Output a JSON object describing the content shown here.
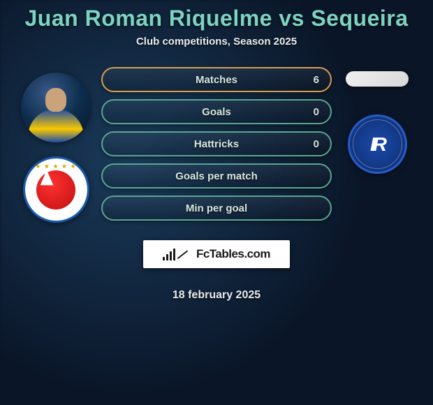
{
  "title": "Juan Roman Riquelme vs Sequeira",
  "subtitle": "Club competitions, Season 2025",
  "date": "18 february 2025",
  "brand": "FcTables.com",
  "colors": {
    "accent_teal": "#7dd3c0",
    "pill_border_green": "#5aa890",
    "pill_border_gold": "#d4a050",
    "text_light": "#e8ecef",
    "bg_dark": "#0a1628"
  },
  "left": {
    "player_name": "Juan Roman Riquelme",
    "club_name": "Argentinos Juniors"
  },
  "right": {
    "player_name": "Sequeira",
    "club_name": "Independiente Rivadavia"
  },
  "stats": [
    {
      "label": "Matches",
      "value": "6",
      "highlight": true
    },
    {
      "label": "Goals",
      "value": "0",
      "highlight": false
    },
    {
      "label": "Hattricks",
      "value": "0",
      "highlight": false
    },
    {
      "label": "Goals per match",
      "value": "",
      "highlight": false
    },
    {
      "label": "Min per goal",
      "value": "",
      "highlight": false
    }
  ],
  "chart_style": {
    "type": "stat-pills",
    "pill_width": 330,
    "pill_height": 36,
    "pill_radius": 18,
    "pill_gap": 10,
    "label_fontsize": 15,
    "label_weight": 800,
    "background_gradient": [
      "rgba(255,255,255,0.05)",
      "rgba(0,0,0,0.15)"
    ]
  }
}
